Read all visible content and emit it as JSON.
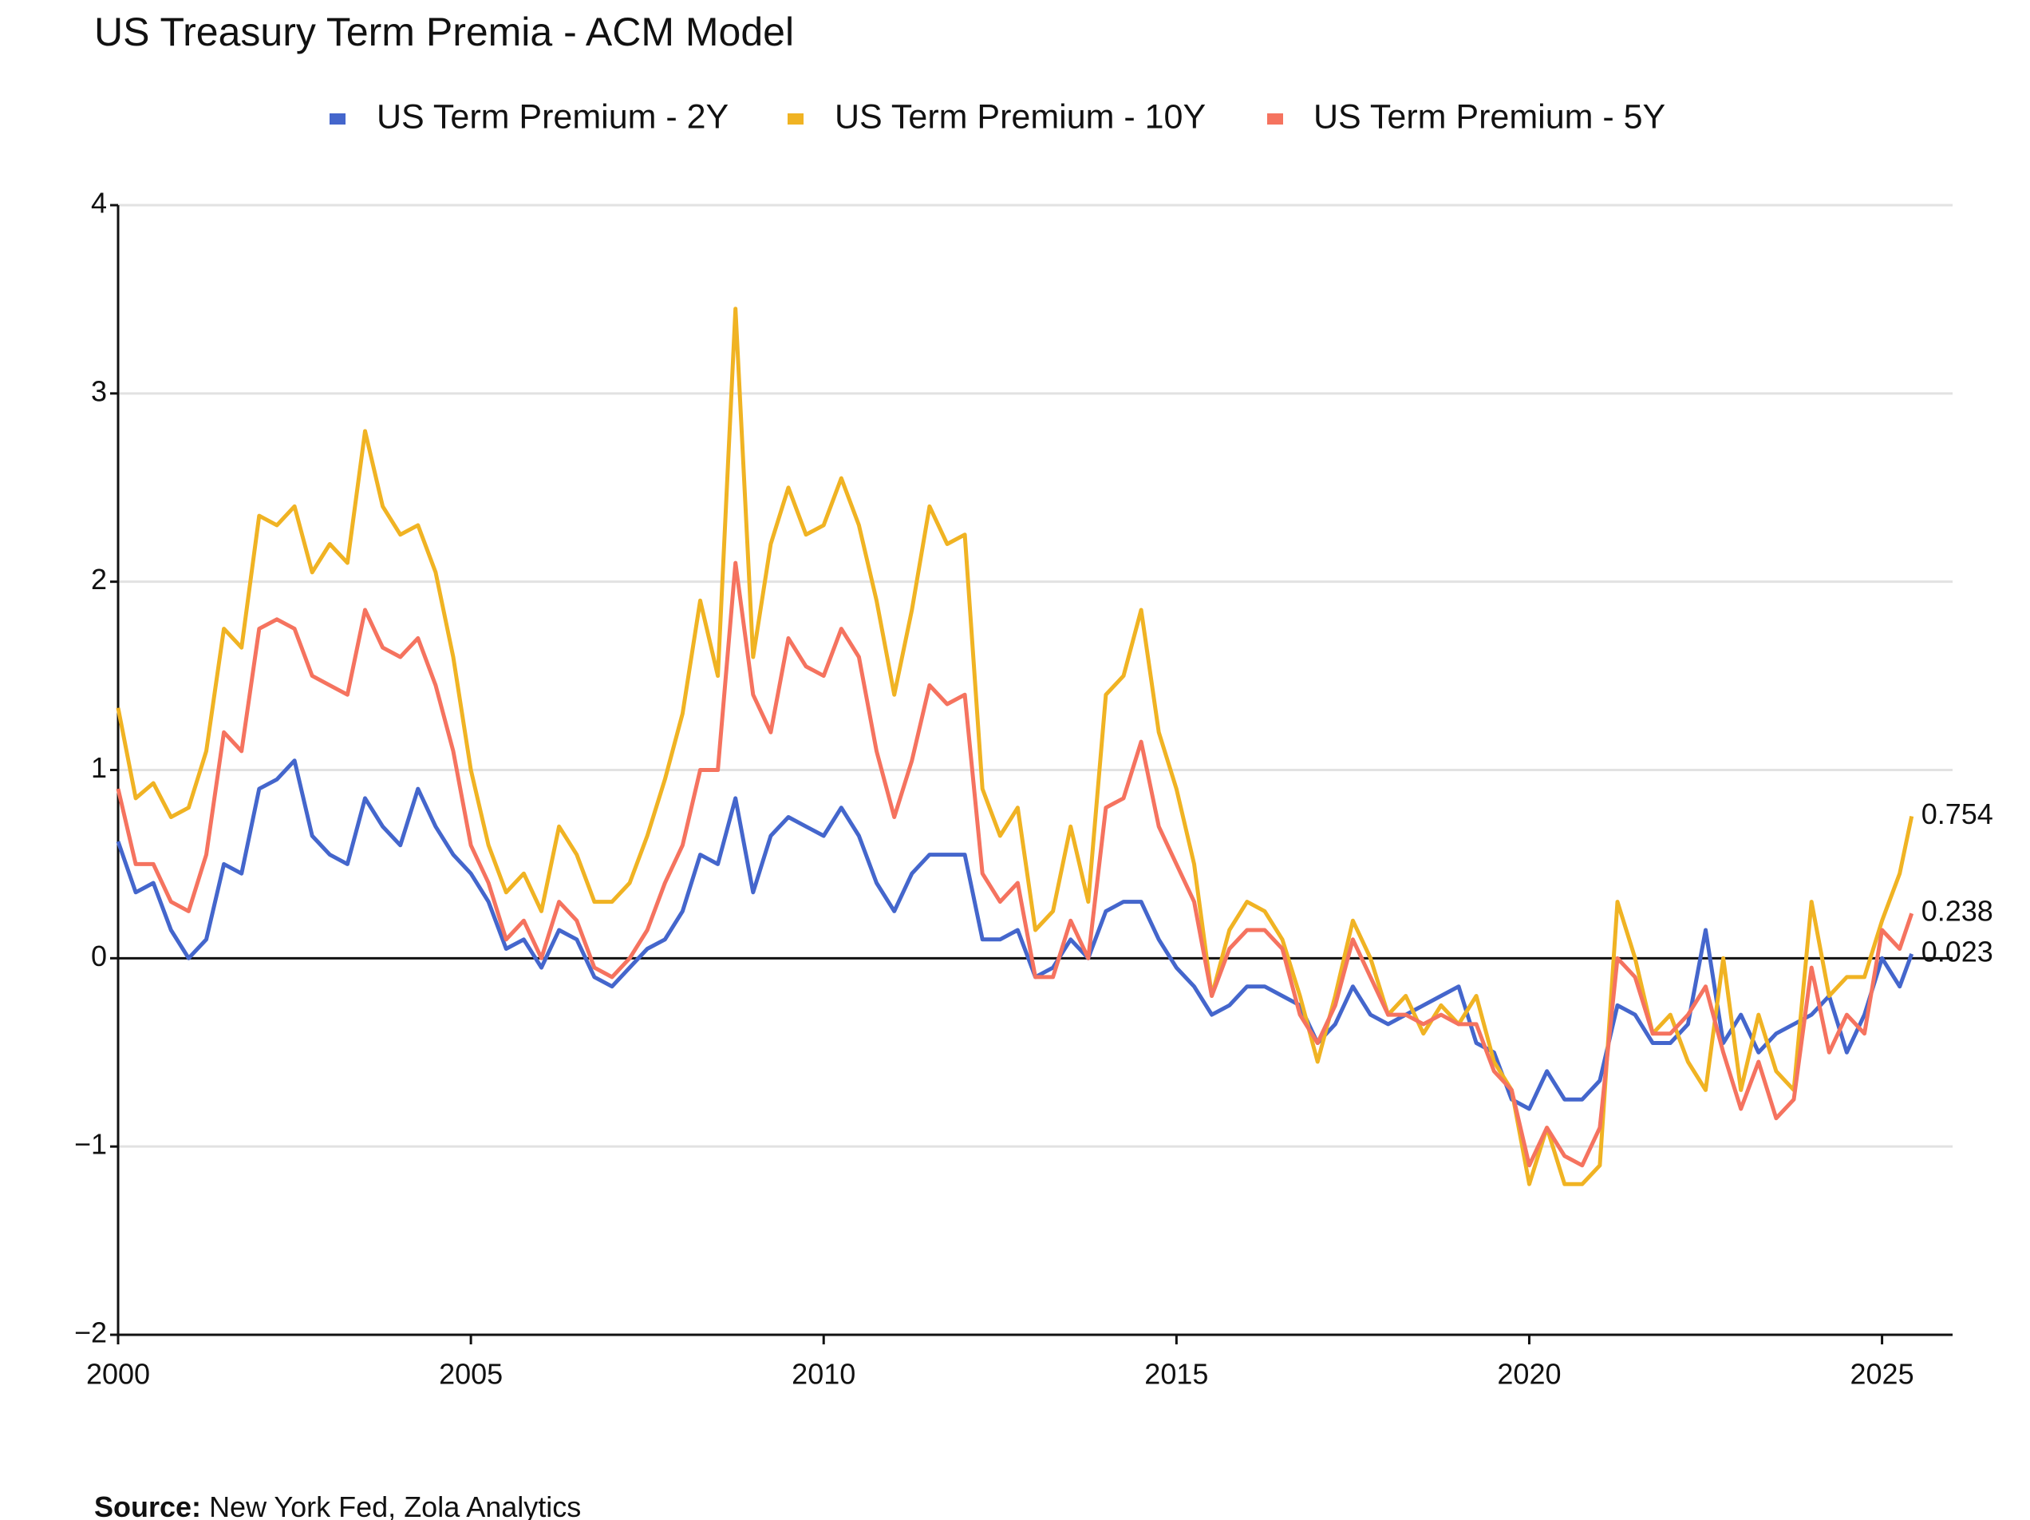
{
  "chart_data": {
    "type": "line",
    "title": "US Treasury Term Premia - ACM Model",
    "source_label": "Source:",
    "source_text": "New York Fed, Zola Analytics",
    "x": [
      2000,
      2000.25,
      2000.5,
      2000.75,
      2001,
      2001.25,
      2001.5,
      2001.75,
      2002,
      2002.25,
      2002.5,
      2002.75,
      2003,
      2003.25,
      2003.5,
      2003.75,
      2004,
      2004.25,
      2004.5,
      2004.75,
      2005,
      2005.25,
      2005.5,
      2005.75,
      2006,
      2006.25,
      2006.5,
      2006.75,
      2007,
      2007.25,
      2007.5,
      2007.75,
      2008,
      2008.25,
      2008.5,
      2008.75,
      2009,
      2009.25,
      2009.5,
      2009.75,
      2010,
      2010.25,
      2010.5,
      2010.75,
      2011,
      2011.25,
      2011.5,
      2011.75,
      2012,
      2012.25,
      2012.5,
      2012.75,
      2013,
      2013.25,
      2013.5,
      2013.75,
      2014,
      2014.25,
      2014.5,
      2014.75,
      2015,
      2015.25,
      2015.5,
      2015.75,
      2016,
      2016.25,
      2016.5,
      2016.75,
      2017,
      2017.25,
      2017.5,
      2017.75,
      2018,
      2018.25,
      2018.5,
      2018.75,
      2019,
      2019.25,
      2019.5,
      2019.75,
      2020,
      2020.25,
      2020.5,
      2020.75,
      2021,
      2021.25,
      2021.5,
      2021.75,
      2022,
      2022.25,
      2022.5,
      2022.75,
      2023,
      2023.25,
      2023.5,
      2023.75,
      2024,
      2024.25,
      2024.5,
      2024.75,
      2025,
      2025.25,
      2025.42
    ],
    "series": [
      {
        "name": "US Term Premium - 2Y",
        "color": "#4466cc",
        "values": [
          0.62,
          0.35,
          0.4,
          0.15,
          0.0,
          0.1,
          0.5,
          0.45,
          0.9,
          0.95,
          1.05,
          0.65,
          0.55,
          0.5,
          0.85,
          0.7,
          0.6,
          0.9,
          0.7,
          0.55,
          0.45,
          0.3,
          0.05,
          0.1,
          -0.05,
          0.15,
          0.1,
          -0.1,
          -0.15,
          -0.05,
          0.05,
          0.1,
          0.25,
          0.55,
          0.5,
          0.85,
          0.35,
          0.65,
          0.75,
          0.7,
          0.65,
          0.8,
          0.65,
          0.4,
          0.25,
          0.45,
          0.55,
          0.55,
          0.55,
          0.1,
          0.1,
          0.15,
          -0.1,
          -0.05,
          0.1,
          0.0,
          0.25,
          0.3,
          0.3,
          0.1,
          -0.05,
          -0.15,
          -0.3,
          -0.25,
          -0.15,
          -0.15,
          -0.2,
          -0.25,
          -0.45,
          -0.35,
          -0.15,
          -0.3,
          -0.35,
          -0.3,
          -0.25,
          -0.2,
          -0.15,
          -0.45,
          -0.5,
          -0.75,
          -0.8,
          -0.6,
          -0.75,
          -0.75,
          -0.65,
          -0.25,
          -0.3,
          -0.45,
          -0.45,
          -0.35,
          0.15,
          -0.45,
          -0.3,
          -0.5,
          -0.4,
          -0.35,
          -0.3,
          -0.2,
          -0.5,
          -0.3,
          0.0,
          -0.15,
          0.023
        ]
      },
      {
        "name": "US Term Premium - 10Y",
        "color": "#f0b323",
        "values": [
          1.33,
          0.85,
          0.93,
          0.75,
          0.8,
          1.1,
          1.75,
          1.65,
          2.35,
          2.3,
          2.4,
          2.05,
          2.2,
          2.1,
          2.8,
          2.4,
          2.25,
          2.3,
          2.05,
          1.6,
          1.0,
          0.6,
          0.35,
          0.45,
          0.25,
          0.7,
          0.55,
          0.3,
          0.3,
          0.4,
          0.65,
          0.95,
          1.3,
          1.9,
          1.5,
          3.45,
          1.6,
          2.2,
          2.5,
          2.25,
          2.3,
          2.55,
          2.3,
          1.9,
          1.4,
          1.85,
          2.4,
          2.2,
          2.25,
          0.9,
          0.65,
          0.8,
          0.15,
          0.25,
          0.7,
          0.3,
          1.4,
          1.5,
          1.85,
          1.2,
          0.9,
          0.5,
          -0.2,
          0.15,
          0.3,
          0.25,
          0.1,
          -0.2,
          -0.55,
          -0.2,
          0.2,
          0.0,
          -0.3,
          -0.2,
          -0.4,
          -0.25,
          -0.35,
          -0.2,
          -0.55,
          -0.7,
          -1.2,
          -0.9,
          -1.2,
          -1.2,
          -1.1,
          0.3,
          0.0,
          -0.4,
          -0.3,
          -0.55,
          -0.7,
          0.0,
          -0.7,
          -0.3,
          -0.6,
          -0.7,
          0.3,
          -0.2,
          -0.1,
          -0.1,
          0.2,
          0.45,
          0.754
        ]
      },
      {
        "name": "US Term Premium - 5Y",
        "color": "#f5735f",
        "values": [
          0.9,
          0.5,
          0.5,
          0.3,
          0.25,
          0.55,
          1.2,
          1.1,
          1.75,
          1.8,
          1.75,
          1.5,
          1.45,
          1.4,
          1.85,
          1.65,
          1.6,
          1.7,
          1.45,
          1.1,
          0.6,
          0.4,
          0.1,
          0.2,
          0.0,
          0.3,
          0.2,
          -0.05,
          -0.1,
          0.0,
          0.15,
          0.4,
          0.6,
          1.0,
          1.0,
          2.1,
          1.4,
          1.2,
          1.7,
          1.55,
          1.5,
          1.75,
          1.6,
          1.1,
          0.75,
          1.05,
          1.45,
          1.35,
          1.4,
          0.45,
          0.3,
          0.4,
          -0.1,
          -0.1,
          0.2,
          0.0,
          0.8,
          0.85,
          1.15,
          0.7,
          0.5,
          0.3,
          -0.2,
          0.05,
          0.15,
          0.15,
          0.05,
          -0.3,
          -0.45,
          -0.25,
          0.1,
          -0.1,
          -0.3,
          -0.3,
          -0.35,
          -0.3,
          -0.35,
          -0.35,
          -0.6,
          -0.7,
          -1.1,
          -0.9,
          -1.05,
          -1.1,
          -0.9,
          0.0,
          -0.1,
          -0.4,
          -0.4,
          -0.3,
          -0.15,
          -0.5,
          -0.8,
          -0.55,
          -0.85,
          -0.75,
          -0.05,
          -0.5,
          -0.3,
          -0.4,
          0.15,
          0.05,
          0.238
        ]
      }
    ],
    "xlim": [
      2000,
      2026
    ],
    "xticks": [
      2000,
      2005,
      2010,
      2015,
      2020,
      2025
    ],
    "ylim": [
      -2,
      4
    ],
    "yticks": [
      {
        "value": -2,
        "label": "−2"
      },
      {
        "value": -1,
        "label": "−1"
      },
      0,
      1,
      2,
      3,
      4
    ],
    "grid": true,
    "legend": "top"
  }
}
